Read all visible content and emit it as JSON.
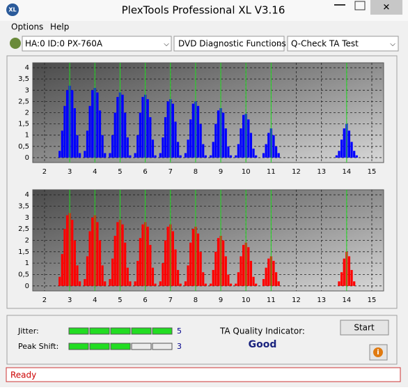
{
  "window": {
    "title": "PlexTools Professional XL V3.16"
  },
  "menu": [
    "Options",
    "Help"
  ],
  "toolbar": {
    "drive": "HA:0 ID:0  PX-760A",
    "function": "DVD Diagnostic Functions",
    "test": "Q-Check TA Test"
  },
  "chart_data": [
    {
      "type": "bar",
      "color": "#0000ff",
      "x": [
        2.6,
        2.7,
        2.8,
        2.9,
        3.0,
        3.1,
        3.2,
        3.3,
        3.4,
        3.6,
        3.7,
        3.8,
        3.9,
        4.0,
        4.1,
        4.2,
        4.3,
        4.4,
        4.6,
        4.7,
        4.8,
        4.9,
        5.0,
        5.1,
        5.2,
        5.3,
        5.4,
        5.6,
        5.7,
        5.8,
        5.9,
        6.0,
        6.1,
        6.2,
        6.3,
        6.4,
        6.6,
        6.7,
        6.8,
        6.9,
        7.0,
        7.1,
        7.2,
        7.3,
        7.4,
        7.6,
        7.7,
        7.8,
        7.9,
        8.0,
        8.1,
        8.2,
        8.3,
        8.4,
        8.6,
        8.7,
        8.8,
        8.9,
        9.0,
        9.1,
        9.2,
        9.3,
        9.4,
        9.6,
        9.7,
        9.8,
        9.9,
        10.0,
        10.1,
        10.2,
        10.3,
        10.4,
        10.6,
        10.7,
        10.8,
        10.9,
        11.0,
        11.1,
        11.2,
        11.3,
        11.4,
        13.6,
        13.7,
        13.8,
        13.9,
        14.0,
        14.1,
        14.2,
        14.3,
        14.4
      ],
      "values": [
        0.3,
        1.2,
        2.3,
        3.0,
        3.2,
        3.0,
        2.2,
        1.0,
        0.2,
        0.3,
        1.2,
        2.3,
        3.0,
        3.1,
        2.9,
        2.1,
        1.0,
        0.2,
        0.2,
        1.0,
        2.0,
        2.7,
        2.9,
        2.8,
        2.0,
        0.9,
        0.1,
        0.2,
        1.0,
        2.0,
        2.7,
        2.8,
        2.6,
        1.8,
        0.8,
        0.1,
        0.2,
        0.9,
        1.8,
        2.5,
        2.6,
        2.4,
        1.6,
        0.7,
        0.1,
        0.2,
        0.8,
        1.7,
        2.4,
        2.5,
        2.3,
        1.5,
        0.6,
        0.1,
        0.1,
        0.7,
        1.5,
        2.1,
        2.2,
        2.0,
        1.3,
        0.5,
        0.1,
        0.1,
        0.6,
        1.3,
        1.9,
        1.95,
        1.7,
        1.1,
        0.4,
        0.1,
        0,
        0.2,
        0.6,
        1.1,
        1.3,
        1.0,
        0.5,
        0.2,
        0,
        0.1,
        0.3,
        0.8,
        1.3,
        1.5,
        1.2,
        0.7,
        0.3,
        0.1
      ],
      "xlim": [
        1.53,
        15.47
      ],
      "ylim": [
        -0.22,
        4.22
      ],
      "xticks": [
        2,
        3,
        4,
        5,
        6,
        7,
        8,
        9,
        10,
        11,
        12,
        13,
        14,
        15
      ],
      "yticks": [
        0,
        {
          "value": 0.5,
          "label": "0,5"
        },
        1,
        {
          "value": 1.5,
          "label": "1,5"
        },
        2,
        {
          "value": 2.5,
          "label": "2,5"
        },
        3,
        {
          "value": 3.5,
          "label": "3,5"
        },
        4
      ],
      "reference_lines": [
        3,
        4,
        5,
        6,
        7,
        8,
        9,
        10,
        11,
        14
      ],
      "grid": true
    },
    {
      "type": "bar",
      "color": "#ff0000",
      "x": [
        2.6,
        2.7,
        2.8,
        2.9,
        3.0,
        3.1,
        3.2,
        3.3,
        3.4,
        3.6,
        3.7,
        3.8,
        3.9,
        4.0,
        4.1,
        4.2,
        4.3,
        4.4,
        4.6,
        4.7,
        4.8,
        4.9,
        5.0,
        5.1,
        5.2,
        5.3,
        5.4,
        5.6,
        5.7,
        5.8,
        5.9,
        6.0,
        6.1,
        6.2,
        6.3,
        6.4,
        6.6,
        6.7,
        6.8,
        6.9,
        7.0,
        7.1,
        7.2,
        7.3,
        7.4,
        7.6,
        7.7,
        7.8,
        7.9,
        8.0,
        8.1,
        8.2,
        8.3,
        8.4,
        8.6,
        8.7,
        8.8,
        8.9,
        9.0,
        9.1,
        9.2,
        9.3,
        9.4,
        9.6,
        9.7,
        9.8,
        9.9,
        10.0,
        10.1,
        10.2,
        10.3,
        10.4,
        10.6,
        10.7,
        10.8,
        10.9,
        11.0,
        11.1,
        11.2,
        11.3,
        11.4,
        13.6,
        13.7,
        13.8,
        13.9,
        14.0,
        14.1,
        14.2,
        14.3,
        14.4
      ],
      "values": [
        0.4,
        1.4,
        2.5,
        3.1,
        3.2,
        2.9,
        2.0,
        0.9,
        0.2,
        0.3,
        1.3,
        2.4,
        3.0,
        3.1,
        2.8,
        2.0,
        0.9,
        0.2,
        0.3,
        1.2,
        2.2,
        2.8,
        2.9,
        2.7,
        1.9,
        0.8,
        0.2,
        0.2,
        1.1,
        2.1,
        2.7,
        2.8,
        2.6,
        1.8,
        0.8,
        0.1,
        0.2,
        1.0,
        2.0,
        2.6,
        2.7,
        2.4,
        1.6,
        0.7,
        0.1,
        0.2,
        0.9,
        1.9,
        2.5,
        2.6,
        2.3,
        1.5,
        0.6,
        0.1,
        0.1,
        0.7,
        1.5,
        2.1,
        2.2,
        2.0,
        1.3,
        0.5,
        0.1,
        0.1,
        0.6,
        1.3,
        1.8,
        1.9,
        1.7,
        1.1,
        0.4,
        0.1,
        0,
        0.3,
        0.8,
        1.2,
        1.3,
        1.1,
        0.6,
        0.2,
        0,
        0,
        0.2,
        0.6,
        1.2,
        1.5,
        1.3,
        0.7,
        0.2,
        0
      ],
      "xlim": [
        1.53,
        15.47
      ],
      "ylim": [
        -0.22,
        4.22
      ],
      "xticks": [
        2,
        3,
        4,
        5,
        6,
        7,
        8,
        9,
        10,
        11,
        12,
        13,
        14,
        15
      ],
      "yticks": [
        0,
        {
          "value": 0.5,
          "label": "0,5"
        },
        1,
        {
          "value": 1.5,
          "label": "1,5"
        },
        2,
        {
          "value": 2.5,
          "label": "2,5"
        },
        3,
        {
          "value": 3.5,
          "label": "3,5"
        },
        4
      ],
      "reference_lines": [
        3,
        4,
        5,
        6,
        7,
        8,
        9,
        10,
        11,
        14
      ],
      "grid": true
    }
  ],
  "results": {
    "jitter": {
      "label": "Jitter:",
      "value": 5
    },
    "peak_shift": {
      "label": "Peak Shift:",
      "value": 3
    },
    "ta_quality": {
      "label": "TA Quality Indicator:",
      "value": "Good"
    }
  },
  "buttons": {
    "start": "Start"
  },
  "status": "Ready"
}
